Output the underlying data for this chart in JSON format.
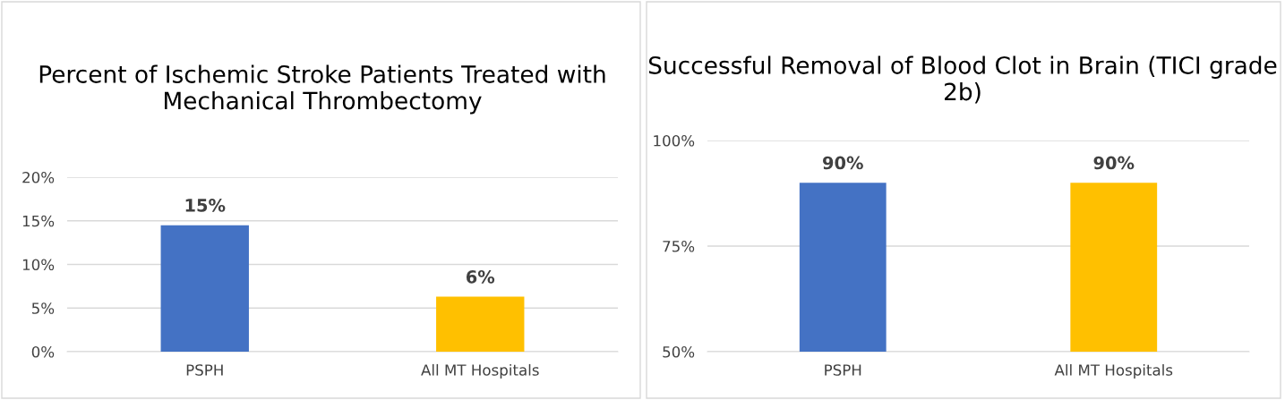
{
  "chart_data": [
    {
      "type": "bar",
      "title": "Percent of Ischemic Stroke Patients Treated with Mechanical Thrombectomy",
      "categories": [
        "PSPH",
        "All MT Hospitals"
      ],
      "values": [
        14.5,
        6.3
      ],
      "colors": [
        "#4472c4",
        "#ffc000"
      ],
      "value_labels": [
        "15%",
        "6%"
      ],
      "ylim": [
        0,
        20
      ],
      "yticks": [
        {
          "value": 0,
          "label": "0%"
        },
        {
          "value": 5,
          "label": "5%"
        },
        {
          "value": 10,
          "label": "10%"
        },
        {
          "value": 15,
          "label": "15%"
        },
        {
          "value": 20,
          "label": "20%"
        }
      ],
      "grid": "y",
      "legend": false
    },
    {
      "type": "bar",
      "title": "Successful Removal of Blood Clot in Brain (TICI grade 2b)",
      "categories": [
        "PSPH",
        "All MT Hospitals"
      ],
      "values": [
        90,
        90
      ],
      "colors": [
        "#4472c4",
        "#ffc000"
      ],
      "value_labels": [
        "90%",
        "90%"
      ],
      "ylim": [
        50,
        100
      ],
      "yticks": [
        {
          "value": 50,
          "label": "50%"
        },
        {
          "value": 75,
          "label": "75%"
        },
        {
          "value": 100,
          "label": "100%"
        }
      ],
      "grid": "y",
      "legend": false
    }
  ]
}
